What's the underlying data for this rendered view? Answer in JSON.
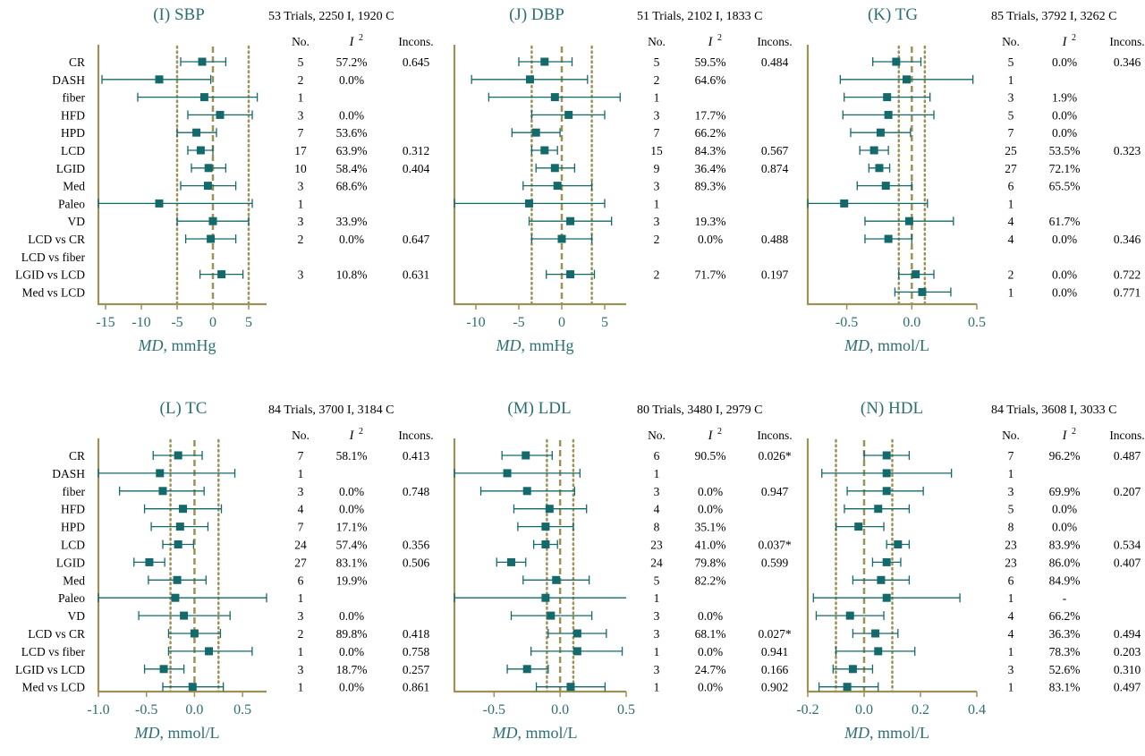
{
  "colors": {
    "marker": "#146a6a",
    "axis": "#9c9157",
    "dotted": "#9c9157",
    "title": "#2e6f72",
    "text": "#000000"
  },
  "row_labels": [
    "CR",
    "DASH",
    "fiber",
    "HFD",
    "HPD",
    "LCD",
    "LGID",
    "Med",
    "Paleo",
    "VD",
    "LCD vs CR",
    "LCD vs fiber",
    "LGID vs LCD",
    "Med vs LCD"
  ],
  "headers": {
    "no": "No.",
    "i2": "I",
    "i2_sup": "2",
    "incons": "Incons."
  },
  "chart_data": [
    {
      "type": "forest",
      "title": "(I) SBP",
      "trials": "53 Trials, 2250 I, 1920 C",
      "xlabel_italic": "MD",
      "xlabel_rest": ", mmHg",
      "xlim": [
        -16,
        7.5
      ],
      "ticks": [
        -15,
        -10,
        -5,
        0,
        5
      ],
      "tick_labels": [
        "-15",
        "-10",
        "-5",
        "0",
        "5"
      ],
      "dotted_lines": [
        -5,
        5
      ],
      "dashed_line": 0,
      "rows": [
        {
          "est": -1.5,
          "lo": -4.5,
          "hi": 1.8,
          "no": "5",
          "i2": "57.2%",
          "incons": "0.645"
        },
        {
          "est": -7.5,
          "lo": -15.5,
          "hi": -0.3,
          "no": "2",
          "i2": "0.0%",
          "incons": ""
        },
        {
          "est": -1.2,
          "lo": -10.5,
          "hi": 6.2,
          "no": "1",
          "i2": "",
          "incons": ""
        },
        {
          "est": 1.0,
          "lo": -3.5,
          "hi": 5.5,
          "no": "3",
          "i2": "0.0%",
          "incons": ""
        },
        {
          "est": -2.3,
          "lo": -5.0,
          "hi": 0.5,
          "no": "7",
          "i2": "53.6%",
          "incons": ""
        },
        {
          "est": -1.7,
          "lo": -3.5,
          "hi": 0.0,
          "no": "17",
          "i2": "63.9%",
          "incons": "0.312"
        },
        {
          "est": -0.6,
          "lo": -3.0,
          "hi": 1.8,
          "no": "10",
          "i2": "58.4%",
          "incons": "0.404"
        },
        {
          "est": -0.7,
          "lo": -4.5,
          "hi": 3.2,
          "no": "3",
          "i2": "68.6%",
          "incons": ""
        },
        {
          "est": -7.5,
          "lo": -16.0,
          "hi": 5.5,
          "no": "1",
          "i2": "",
          "incons": ""
        },
        {
          "est": 0.0,
          "lo": -5.0,
          "hi": 5.0,
          "no": "3",
          "i2": "33.9%",
          "incons": ""
        },
        {
          "est": -0.3,
          "lo": -3.8,
          "hi": 3.2,
          "no": "2",
          "i2": "0.0%",
          "incons": "0.647"
        },
        null,
        {
          "est": 1.2,
          "lo": -1.8,
          "hi": 4.2,
          "no": "3",
          "i2": "10.8%",
          "incons": "0.631"
        },
        null
      ]
    },
    {
      "type": "forest",
      "title": "(J) DBP",
      "trials": "51 Trials, 2102 I, 1833 C",
      "xlabel_italic": "MD",
      "xlabel_rest": ", mmHg",
      "xlim": [
        -12.5,
        7.5
      ],
      "ticks": [
        -10,
        -5,
        0,
        5
      ],
      "tick_labels": [
        "-10",
        "-5",
        "0",
        "5"
      ],
      "dotted_lines": [
        -3.5,
        3.5
      ],
      "dashed_line": 0,
      "rows": [
        {
          "est": -2.0,
          "lo": -5.0,
          "hi": 1.2,
          "no": "5",
          "i2": "59.5%",
          "incons": "0.484"
        },
        {
          "est": -3.7,
          "lo": -10.5,
          "hi": 3.0,
          "no": "2",
          "i2": "64.6%",
          "incons": ""
        },
        {
          "est": -0.8,
          "lo": -8.5,
          "hi": 6.8,
          "no": "1",
          "i2": "",
          "incons": ""
        },
        {
          "est": 0.8,
          "lo": -3.5,
          "hi": 5.0,
          "no": "3",
          "i2": "17.7%",
          "incons": ""
        },
        {
          "est": -3.0,
          "lo": -5.8,
          "hi": -0.2,
          "no": "7",
          "i2": "66.2%",
          "incons": ""
        },
        {
          "est": -2.0,
          "lo": -3.5,
          "hi": -0.5,
          "no": "15",
          "i2": "84.3%",
          "incons": "0.567"
        },
        {
          "est": -0.8,
          "lo": -3.0,
          "hi": 1.5,
          "no": "9",
          "i2": "36.4%",
          "incons": "0.874"
        },
        {
          "est": -0.5,
          "lo": -4.5,
          "hi": 3.5,
          "no": "3",
          "i2": "89.3%",
          "incons": ""
        },
        {
          "est": -3.8,
          "lo": -12.5,
          "hi": 5.0,
          "no": "1",
          "i2": "",
          "incons": ""
        },
        {
          "est": 1.0,
          "lo": -3.8,
          "hi": 5.8,
          "no": "3",
          "i2": "19.3%",
          "incons": ""
        },
        {
          "est": 0.0,
          "lo": -3.5,
          "hi": 3.5,
          "no": "2",
          "i2": "0.0%",
          "incons": "0.488"
        },
        null,
        {
          "est": 1.0,
          "lo": -1.8,
          "hi": 3.8,
          "no": "2",
          "i2": "71.7%",
          "incons": "0.197"
        },
        null
      ]
    },
    {
      "type": "forest",
      "title": "(K) TG",
      "trials": "85 Trials, 3792 I, 3262 C",
      "xlabel_italic": "MD",
      "xlabel_rest": ", mmol/L",
      "xlim": [
        -0.8,
        0.5
      ],
      "ticks": [
        -0.5,
        0.0,
        0.5
      ],
      "tick_labels": [
        "-0.5",
        "0.0",
        "0.5"
      ],
      "dotted_lines": [
        -0.1,
        0.1
      ],
      "dashed_line": 0,
      "rows": [
        {
          "est": -0.12,
          "lo": -0.3,
          "hi": 0.07,
          "no": "5",
          "i2": "0.0%",
          "incons": "0.346"
        },
        {
          "est": -0.04,
          "lo": -0.55,
          "hi": 0.47,
          "no": "1",
          "i2": "",
          "incons": ""
        },
        {
          "est": -0.19,
          "lo": -0.52,
          "hi": 0.14,
          "no": "3",
          "i2": "1.9%",
          "incons": ""
        },
        {
          "est": -0.18,
          "lo": -0.53,
          "hi": 0.17,
          "no": "5",
          "i2": "0.0%",
          "incons": ""
        },
        {
          "est": -0.24,
          "lo": -0.47,
          "hi": -0.01,
          "no": "7",
          "i2": "0.0%",
          "incons": ""
        },
        {
          "est": -0.29,
          "lo": -0.4,
          "hi": -0.18,
          "no": "25",
          "i2": "53.5%",
          "incons": "0.323"
        },
        {
          "est": -0.25,
          "lo": -0.33,
          "hi": -0.17,
          "no": "27",
          "i2": "72.1%",
          "incons": ""
        },
        {
          "est": -0.2,
          "lo": -0.42,
          "hi": 0.0,
          "no": "6",
          "i2": "65.5%",
          "incons": ""
        },
        {
          "est": -0.52,
          "lo": -0.8,
          "hi": 0.12,
          "no": "1",
          "i2": "",
          "incons": ""
        },
        {
          "est": -0.02,
          "lo": -0.36,
          "hi": 0.32,
          "no": "4",
          "i2": "61.7%",
          "incons": ""
        },
        {
          "est": -0.18,
          "lo": -0.36,
          "hi": 0.0,
          "no": "4",
          "i2": "0.0%",
          "incons": "0.346"
        },
        null,
        {
          "est": 0.03,
          "lo": -0.1,
          "hi": 0.17,
          "no": "2",
          "i2": "0.0%",
          "incons": "0.722"
        },
        {
          "est": 0.08,
          "lo": -0.13,
          "hi": 0.3,
          "no": "1",
          "i2": "0.0%",
          "incons": "0.771"
        }
      ]
    },
    {
      "type": "forest",
      "title": "(L) TC",
      "trials": "84 Trials, 3700 I, 3184 C",
      "xlabel_italic": "MD",
      "xlabel_rest": ", mmol/L",
      "xlim": [
        -1.0,
        0.75
      ],
      "ticks": [
        -1.0,
        -0.5,
        0.0,
        0.5
      ],
      "tick_labels": [
        "-1.0",
        "-0.5",
        "0.0",
        "0.5"
      ],
      "dotted_lines": [
        -0.25,
        0.25
      ],
      "dashed_line": 0,
      "rows": [
        {
          "est": -0.17,
          "lo": -0.43,
          "hi": 0.08,
          "no": "7",
          "i2": "58.1%",
          "incons": "0.413"
        },
        {
          "est": -0.36,
          "lo": -1.0,
          "hi": 0.42,
          "no": "1",
          "i2": "",
          "incons": ""
        },
        {
          "est": -0.33,
          "lo": -0.78,
          "hi": 0.1,
          "no": "3",
          "i2": "0.0%",
          "incons": "0.748"
        },
        {
          "est": -0.12,
          "lo": -0.52,
          "hi": 0.28,
          "no": "4",
          "i2": "0.0%",
          "incons": ""
        },
        {
          "est": -0.15,
          "lo": -0.45,
          "hi": 0.14,
          "no": "7",
          "i2": "17.1%",
          "incons": ""
        },
        {
          "est": -0.17,
          "lo": -0.33,
          "hi": -0.01,
          "no": "24",
          "i2": "57.4%",
          "incons": "0.356"
        },
        {
          "est": -0.47,
          "lo": -0.63,
          "hi": -0.31,
          "no": "27",
          "i2": "83.1%",
          "incons": "0.506"
        },
        {
          "est": -0.18,
          "lo": -0.48,
          "hi": 0.12,
          "no": "6",
          "i2": "19.9%",
          "incons": ""
        },
        {
          "est": -0.2,
          "lo": -1.0,
          "hi": 0.75,
          "no": "1",
          "i2": "",
          "incons": ""
        },
        {
          "est": -0.11,
          "lo": -0.58,
          "hi": 0.37,
          "no": "3",
          "i2": "0.0%",
          "incons": ""
        },
        {
          "est": 0.0,
          "lo": -0.27,
          "hi": 0.27,
          "no": "2",
          "i2": "89.8%",
          "incons": "0.418"
        },
        {
          "est": 0.15,
          "lo": -0.27,
          "hi": 0.6,
          "no": "1",
          "i2": "0.0%",
          "incons": "0.758"
        },
        {
          "est": -0.32,
          "lo": -0.52,
          "hi": -0.11,
          "no": "3",
          "i2": "18.7%",
          "incons": "0.257"
        },
        {
          "est": -0.02,
          "lo": -0.33,
          "hi": 0.3,
          "no": "1",
          "i2": "0.0%",
          "incons": "0.861"
        }
      ]
    },
    {
      "type": "forest",
      "title": "(M) LDL",
      "trials": "80 Trials, 3480 I, 2979 C",
      "xlabel_italic": "MD",
      "xlabel_rest": ", mmol/L",
      "xlim": [
        -0.8,
        0.5
      ],
      "ticks": [
        -0.5,
        0.0,
        0.5
      ],
      "tick_labels": [
        "-0.5",
        "0.0",
        "0.5"
      ],
      "dotted_lines": [
        -0.1,
        0.1
      ],
      "dashed_line": 0,
      "rows": [
        {
          "est": -0.26,
          "lo": -0.44,
          "hi": -0.06,
          "no": "6",
          "i2": "90.5%",
          "incons": "0.026*"
        },
        {
          "est": -0.4,
          "lo": -0.8,
          "hi": 0.15,
          "no": "1",
          "i2": "",
          "incons": ""
        },
        {
          "est": -0.25,
          "lo": -0.6,
          "hi": 0.11,
          "no": "3",
          "i2": "0.0%",
          "incons": "0.947"
        },
        {
          "est": -0.08,
          "lo": -0.35,
          "hi": 0.2,
          "no": "4",
          "i2": "0.0%",
          "incons": ""
        },
        {
          "est": -0.11,
          "lo": -0.32,
          "hi": 0.1,
          "no": "8",
          "i2": "35.1%",
          "incons": ""
        },
        {
          "est": -0.11,
          "lo": -0.2,
          "hi": -0.02,
          "no": "23",
          "i2": "41.0%",
          "incons": "0.037*"
        },
        {
          "est": -0.37,
          "lo": -0.48,
          "hi": -0.26,
          "no": "24",
          "i2": "79.8%",
          "incons": "0.599"
        },
        {
          "est": -0.03,
          "lo": -0.28,
          "hi": 0.22,
          "no": "5",
          "i2": "82.2%",
          "incons": ""
        },
        {
          "est": -0.11,
          "lo": -0.8,
          "hi": 0.52,
          "no": "1",
          "i2": "",
          "incons": ""
        },
        {
          "est": -0.07,
          "lo": -0.37,
          "hi": 0.24,
          "no": "3",
          "i2": "0.0%",
          "incons": ""
        },
        {
          "est": 0.13,
          "lo": -0.09,
          "hi": 0.35,
          "no": "3",
          "i2": "68.1%",
          "incons": "0.027*"
        },
        {
          "est": 0.13,
          "lo": -0.22,
          "hi": 0.47,
          "no": "1",
          "i2": "0.0%",
          "incons": "0.941"
        },
        {
          "est": -0.25,
          "lo": -0.4,
          "hi": -0.09,
          "no": "3",
          "i2": "24.7%",
          "incons": "0.166"
        },
        {
          "est": 0.08,
          "lo": -0.18,
          "hi": 0.34,
          "no": "1",
          "i2": "0.0%",
          "incons": "0.902"
        }
      ]
    },
    {
      "type": "forest",
      "title": "(N) HDL",
      "trials": "84 Trials, 3608 I, 3033 C",
      "xlabel_italic": "MD",
      "xlabel_rest": ", mmol/L",
      "xlim": [
        -0.2,
        0.4
      ],
      "ticks": [
        -0.2,
        0.0,
        0.2,
        0.4
      ],
      "tick_labels": [
        "-0.2",
        "0.0",
        "0.2",
        "0.4"
      ],
      "dotted_lines": [
        -0.1,
        0.1
      ],
      "dashed_line": 0,
      "rows": [
        {
          "est": 0.08,
          "lo": 0.0,
          "hi": 0.16,
          "no": "7",
          "i2": "96.2%",
          "incons": "0.487"
        },
        {
          "est": 0.08,
          "lo": -0.15,
          "hi": 0.31,
          "no": "1",
          "i2": "",
          "incons": ""
        },
        {
          "est": 0.08,
          "lo": -0.06,
          "hi": 0.21,
          "no": "3",
          "i2": "69.9%",
          "incons": "0.207"
        },
        {
          "est": 0.05,
          "lo": -0.07,
          "hi": 0.16,
          "no": "5",
          "i2": "0.0%",
          "incons": ""
        },
        {
          "est": -0.02,
          "lo": -0.1,
          "hi": 0.07,
          "no": "8",
          "i2": "0.0%",
          "incons": ""
        },
        {
          "est": 0.12,
          "lo": 0.08,
          "hi": 0.16,
          "no": "23",
          "i2": "83.9%",
          "incons": "0.534"
        },
        {
          "est": 0.08,
          "lo": 0.03,
          "hi": 0.13,
          "no": "23",
          "i2": "86.0%",
          "incons": "0.407"
        },
        {
          "est": 0.06,
          "lo": -0.04,
          "hi": 0.16,
          "no": "6",
          "i2": "84.9%",
          "incons": ""
        },
        {
          "est": 0.08,
          "lo": -0.18,
          "hi": 0.34,
          "no": "1",
          "i2": "-",
          "incons": ""
        },
        {
          "est": -0.05,
          "lo": -0.17,
          "hi": 0.07,
          "no": "4",
          "i2": "66.2%",
          "incons": ""
        },
        {
          "est": 0.04,
          "lo": -0.04,
          "hi": 0.12,
          "no": "4",
          "i2": "36.3%",
          "incons": "0.494"
        },
        {
          "est": 0.05,
          "lo": -0.1,
          "hi": 0.18,
          "no": "1",
          "i2": "78.3%",
          "incons": "0.203"
        },
        {
          "est": -0.04,
          "lo": -0.11,
          "hi": 0.03,
          "no": "3",
          "i2": "52.6%",
          "incons": "0.310"
        },
        {
          "est": -0.06,
          "lo": -0.16,
          "hi": 0.05,
          "no": "1",
          "i2": "83.1%",
          "incons": "0.497"
        }
      ]
    }
  ]
}
